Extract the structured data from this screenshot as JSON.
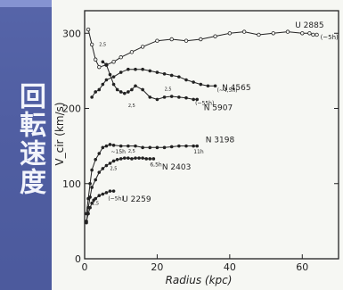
{
  "slide": {
    "title": "回転速度"
  },
  "chart_data": {
    "type": "line",
    "xlabel": "Radius (kpc)",
    "ylabel": "V_cir (km/s)",
    "xlim": [
      0,
      70
    ],
    "ylim": [
      0,
      330
    ],
    "xticks": [
      "0",
      "20",
      "40",
      "60"
    ],
    "yticks": [
      "0",
      "100",
      "200",
      "300"
    ],
    "grid": false,
    "series": [
      {
        "name": "U 2885",
        "marker": "open",
        "points": [
          [
            1,
            305
          ],
          [
            2,
            285
          ],
          [
            3,
            265
          ],
          [
            4,
            255
          ],
          [
            6,
            258
          ],
          [
            8,
            262
          ],
          [
            10,
            268
          ],
          [
            13,
            275
          ],
          [
            16,
            282
          ],
          [
            20,
            290
          ],
          [
            24,
            292
          ],
          [
            28,
            290
          ],
          [
            32,
            292
          ],
          [
            36,
            296
          ],
          [
            40,
            300
          ],
          [
            44,
            302
          ],
          [
            48,
            298
          ],
          [
            52,
            300
          ],
          [
            56,
            302
          ],
          [
            60,
            300
          ],
          [
            62,
            300
          ],
          [
            63,
            298
          ],
          [
            64,
            298
          ]
        ]
      },
      {
        "name": "N 4565",
        "marker": "filled",
        "points": [
          [
            2,
            215
          ],
          [
            3,
            222
          ],
          [
            4,
            225
          ],
          [
            5,
            232
          ],
          [
            6,
            238
          ],
          [
            8,
            242
          ],
          [
            10,
            248
          ],
          [
            12,
            252
          ],
          [
            14,
            252
          ],
          [
            16,
            252
          ],
          [
            18,
            250
          ],
          [
            20,
            248
          ],
          [
            22,
            246
          ],
          [
            24,
            244
          ],
          [
            26,
            242
          ],
          [
            28,
            238
          ],
          [
            30,
            235
          ],
          [
            32,
            232
          ],
          [
            34,
            230
          ],
          [
            36,
            230
          ]
        ]
      },
      {
        "name": "N 5907",
        "marker": "filled",
        "points": [
          [
            5,
            262
          ],
          [
            6,
            258
          ],
          [
            7,
            245
          ],
          [
            8,
            232
          ],
          [
            9,
            225
          ],
          [
            10,
            222
          ],
          [
            11,
            220
          ],
          [
            12,
            222
          ],
          [
            13,
            225
          ],
          [
            14,
            230
          ],
          [
            16,
            225
          ],
          [
            18,
            215
          ],
          [
            20,
            212
          ],
          [
            22,
            215
          ],
          [
            24,
            216
          ],
          [
            26,
            215
          ],
          [
            28,
            214
          ],
          [
            30,
            212
          ],
          [
            31,
            212
          ]
        ]
      },
      {
        "name": "N 3198",
        "marker": "filled",
        "points": [
          [
            0.5,
            60
          ],
          [
            1,
            80
          ],
          [
            1.5,
            100
          ],
          [
            2,
            118
          ],
          [
            3,
            132
          ],
          [
            4,
            140
          ],
          [
            5,
            148
          ],
          [
            6,
            150
          ],
          [
            7,
            152
          ],
          [
            8,
            151
          ],
          [
            10,
            150
          ],
          [
            12,
            150
          ],
          [
            14,
            150
          ],
          [
            16,
            148
          ],
          [
            18,
            148
          ],
          [
            20,
            148
          ],
          [
            22,
            148
          ],
          [
            24,
            149
          ],
          [
            26,
            150
          ],
          [
            28,
            150
          ],
          [
            30,
            150
          ],
          [
            31,
            150
          ]
        ]
      },
      {
        "name": "N 2403",
        "marker": "filled",
        "points": [
          [
            0.5,
            48
          ],
          [
            1,
            68
          ],
          [
            1.5,
            82
          ],
          [
            2,
            95
          ],
          [
            3,
            105
          ],
          [
            4,
            115
          ],
          [
            5,
            120
          ],
          [
            6,
            124
          ],
          [
            7,
            127
          ],
          [
            8,
            130
          ],
          [
            9,
            132
          ],
          [
            10,
            133
          ],
          [
            11,
            134
          ],
          [
            12,
            134
          ],
          [
            13,
            133
          ],
          [
            14,
            134
          ],
          [
            15,
            134
          ],
          [
            16,
            134
          ],
          [
            17,
            133
          ],
          [
            18,
            133
          ],
          [
            19,
            133
          ]
        ]
      },
      {
        "name": "U 2259",
        "marker": "filled",
        "points": [
          [
            0.5,
            50
          ],
          [
            1,
            60
          ],
          [
            1.5,
            68
          ],
          [
            2,
            74
          ],
          [
            2.5,
            78
          ],
          [
            3,
            80
          ],
          [
            4,
            84
          ],
          [
            5,
            86
          ],
          [
            6,
            88
          ],
          [
            7,
            90
          ],
          [
            8,
            90
          ]
        ]
      }
    ],
    "annotations": [
      "(~5h)",
      "(~55h)",
      "(~4,5h)",
      "~15h",
      "(~5h)",
      "11h",
      "6,5h",
      "2,5",
      "2,5",
      "2,5",
      "2,5",
      "2,5",
      "2,5"
    ]
  }
}
